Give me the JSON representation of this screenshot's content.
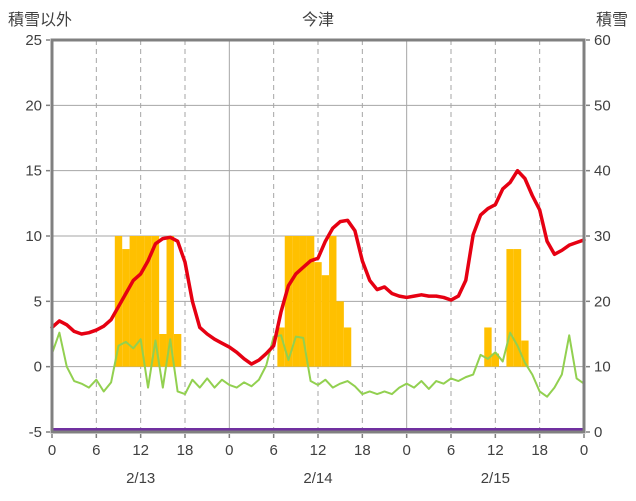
{
  "chart_data": {
    "type": "line",
    "subtype": "combo-line-bar",
    "title": "今津",
    "left_axis": {
      "label": "積雪以外",
      "min": -5,
      "max": 25,
      "step": 5,
      "ticks": [
        25,
        20,
        15,
        10,
        5,
        0,
        -5
      ]
    },
    "right_axis": {
      "label": "積雪",
      "min": 0,
      "max": 60,
      "step": 10,
      "ticks": [
        60,
        50,
        40,
        30,
        20,
        10,
        0
      ]
    },
    "x_axis": {
      "min_hour": 0,
      "max_hour": 72,
      "tick_step": 6,
      "tick_labels": [
        "0",
        "6",
        "12",
        "18",
        "0",
        "6",
        "12",
        "18",
        "0",
        "6",
        "12",
        "18",
        "0"
      ],
      "day_labels": [
        "2/13",
        "2/14",
        "2/15"
      ],
      "grid": "solid-at-day-breaks-dashed-at-6-12-18"
    },
    "series": {
      "red": {
        "name": "red-line",
        "axis": "left",
        "color": "#e60012",
        "x_unit": "hour",
        "values": [
          3.0,
          3.5,
          3.2,
          2.7,
          2.5,
          2.6,
          2.8,
          3.1,
          3.6,
          4.6,
          5.6,
          6.6,
          7.1,
          8.1,
          9.4,
          9.8,
          9.9,
          9.6,
          8.0,
          5.0,
          3.0,
          2.5,
          2.1,
          1.8,
          1.5,
          1.1,
          0.6,
          0.2,
          0.5,
          1.0,
          1.6,
          4.2,
          6.2,
          7.1,
          7.6,
          8.1,
          8.3,
          9.6,
          10.6,
          11.1,
          11.2,
          10.4,
          8.1,
          6.6,
          5.9,
          6.1,
          5.6,
          5.4,
          5.3,
          5.4,
          5.5,
          5.4,
          5.4,
          5.3,
          5.1,
          5.4,
          6.6,
          10.1,
          11.6,
          12.1,
          12.4,
          13.6,
          14.1,
          15.0,
          14.4,
          13.1,
          12.0,
          9.6,
          8.6,
          8.9,
          9.3,
          9.5,
          9.7
        ]
      },
      "green": {
        "name": "green-line",
        "axis": "left",
        "color": "#92d050",
        "x_unit": "hour",
        "values": [
          1.0,
          2.6,
          0.0,
          -1.1,
          -1.3,
          -1.6,
          -1.0,
          -1.9,
          -1.2,
          1.6,
          1.9,
          1.4,
          2.1,
          -1.6,
          2.0,
          -1.6,
          2.1,
          -1.9,
          -2.1,
          -1.0,
          -1.6,
          -0.9,
          -1.6,
          -1.0,
          -1.4,
          -1.6,
          -1.2,
          -1.5,
          -1.0,
          0.1,
          2.3,
          2.4,
          0.5,
          2.3,
          2.2,
          -1.1,
          -1.4,
          -1.0,
          -1.6,
          -1.3,
          -1.1,
          -1.5,
          -2.1,
          -1.9,
          -2.1,
          -1.9,
          -2.1,
          -1.6,
          -1.3,
          -1.6,
          -1.1,
          -1.7,
          -1.1,
          -1.3,
          -0.9,
          -1.1,
          -0.8,
          -0.6,
          0.9,
          0.6,
          1.1,
          0.4,
          2.6,
          1.6,
          0.3,
          -0.6,
          -1.9,
          -2.3,
          -1.6,
          -0.6,
          2.4,
          -0.9,
          -1.3
        ]
      },
      "bars": {
        "name": "orange-bars",
        "axis": "left",
        "baseline": 0,
        "color": "#ffc000",
        "values": [
          {
            "h": 9,
            "v": 10
          },
          {
            "h": 10,
            "v": 9
          },
          {
            "h": 11,
            "v": 10
          },
          {
            "h": 12,
            "v": 10
          },
          {
            "h": 13,
            "v": 10
          },
          {
            "h": 14,
            "v": 10
          },
          {
            "h": 15,
            "v": 2.5
          },
          {
            "h": 16,
            "v": 10
          },
          {
            "h": 17,
            "v": 2.5
          },
          {
            "h": 31,
            "v": 3
          },
          {
            "h": 32,
            "v": 10
          },
          {
            "h": 33,
            "v": 10
          },
          {
            "h": 34,
            "v": 10
          },
          {
            "h": 35,
            "v": 10
          },
          {
            "h": 36,
            "v": 8
          },
          {
            "h": 37,
            "v": 7
          },
          {
            "h": 38,
            "v": 10
          },
          {
            "h": 39,
            "v": 5
          },
          {
            "h": 40,
            "v": 3
          },
          {
            "h": 59,
            "v": 3
          },
          {
            "h": 60,
            "v": 1
          },
          {
            "h": 62,
            "v": 9
          },
          {
            "h": 63,
            "v": 9
          },
          {
            "h": 64,
            "v": 2
          }
        ]
      },
      "snow_depth": {
        "name": "purple-line",
        "axis": "right",
        "color": "#7030a0",
        "value": 0
      }
    },
    "colors": {
      "red_line": "#e60012",
      "green_line": "#92d050",
      "orange_bars": "#ffc000",
      "purple_line": "#7030a0",
      "frame": "#808080",
      "grid": "#a6a6a6",
      "text": "#404040"
    }
  }
}
